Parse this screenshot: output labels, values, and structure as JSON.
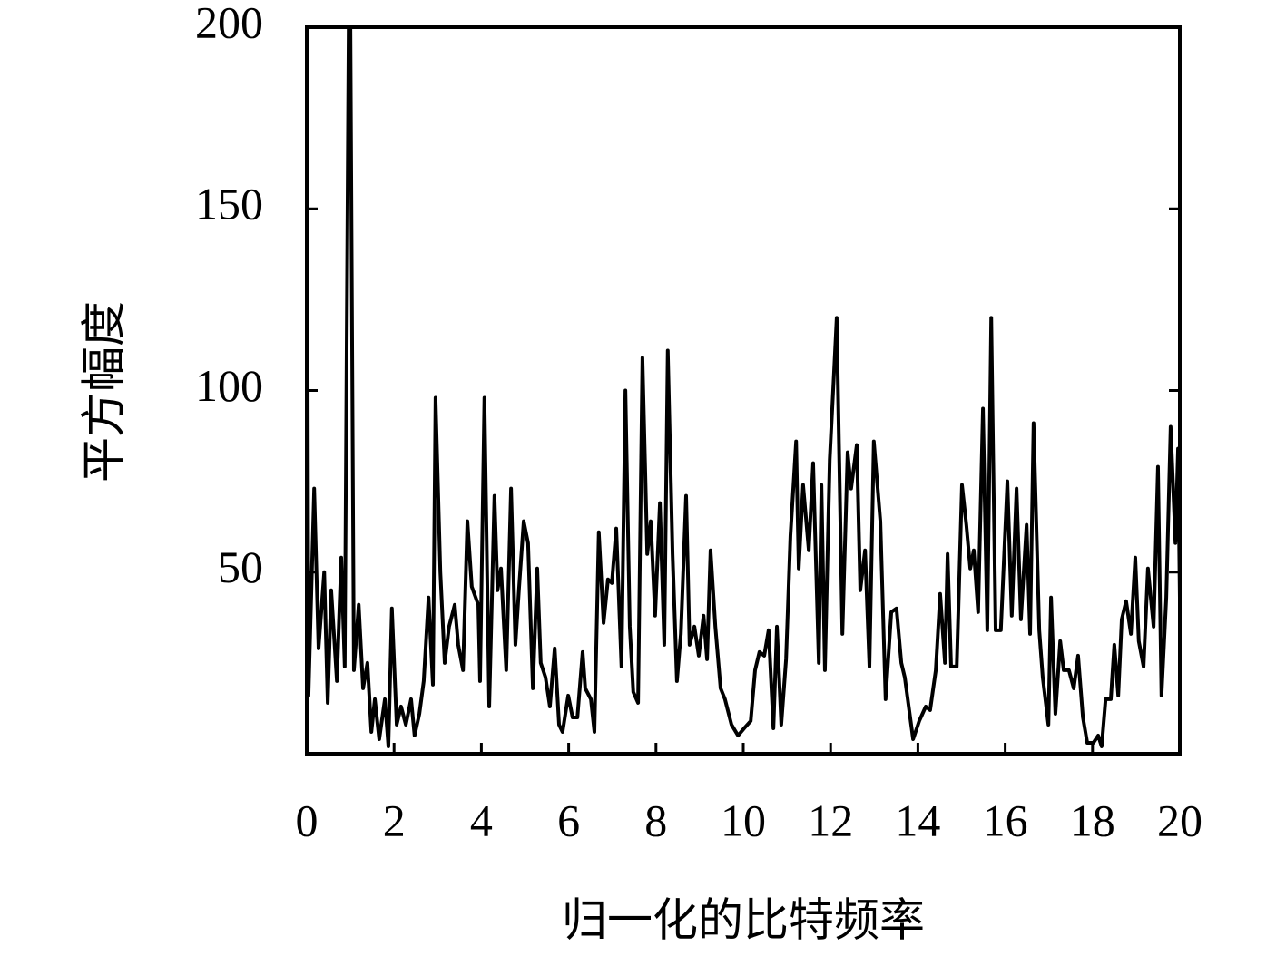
{
  "chart_data": {
    "type": "line",
    "x_label": "归一化的比特频率",
    "y_label": "平方幅度",
    "color": "#000000",
    "xlim": [
      0,
      20
    ],
    "ylim": [
      0,
      200
    ],
    "xticks": [
      0,
      2,
      4,
      6,
      8,
      10,
      12,
      14,
      16,
      18,
      20
    ],
    "yticks": [
      50,
      100,
      150,
      200
    ],
    "x": [
      0,
      0.04,
      0.17,
      0.27,
      0.4,
      0.48,
      0.56,
      0.69,
      0.79,
      0.87,
      0.96,
      1.0,
      1.08,
      1.19,
      1.29,
      1.39,
      1.48,
      1.56,
      1.66,
      1.79,
      1.87,
      1.95,
      2.06,
      2.16,
      2.27,
      2.39,
      2.47,
      2.58,
      2.68,
      2.79,
      2.89,
      2.95,
      3.06,
      3.16,
      3.26,
      3.39,
      3.47,
      3.58,
      3.68,
      3.78,
      3.93,
      3.97,
      4.07,
      4.18,
      4.3,
      4.37,
      4.45,
      4.57,
      4.68,
      4.78,
      4.86,
      4.97,
      5.07,
      5.18,
      5.28,
      5.36,
      5.47,
      5.57,
      5.68,
      5.78,
      5.86,
      5.99,
      6.09,
      6.2,
      6.32,
      6.38,
      6.51,
      6.59,
      6.69,
      6.8,
      6.9,
      6.99,
      7.09,
      7.21,
      7.3,
      7.4,
      7.48,
      7.59,
      7.69,
      7.8,
      7.88,
      7.98,
      8.09,
      8.19,
      8.27,
      8.38,
      8.48,
      8.57,
      8.69,
      8.77,
      8.88,
      8.98,
      9.09,
      9.17,
      9.25,
      9.36,
      9.48,
      9.58,
      9.73,
      9.88,
      10.02,
      10.17,
      10.27,
      10.37,
      10.48,
      10.58,
      10.69,
      10.77,
      10.87,
      10.98,
      11.08,
      11.21,
      11.27,
      11.37,
      11.5,
      11.6,
      11.73,
      11.79,
      11.87,
      11.98,
      12.14,
      12.27,
      12.39,
      12.47,
      12.6,
      12.68,
      12.79,
      12.89,
      12.99,
      13.14,
      13.26,
      13.39,
      13.51,
      13.62,
      13.7,
      13.89,
      14.03,
      14.18,
      14.28,
      14.41,
      14.51,
      14.62,
      14.68,
      14.76,
      14.89,
      15.01,
      15.11,
      15.2,
      15.28,
      15.38,
      15.49,
      15.59,
      15.68,
      15.78,
      15.9,
      16.05,
      16.15,
      16.26,
      16.36,
      16.49,
      16.57,
      16.65,
      16.78,
      16.86,
      16.99,
      17.05,
      17.15,
      17.26,
      17.34,
      17.46,
      17.57,
      17.67,
      17.78,
      17.88,
      18.02,
      18.13,
      18.21,
      18.3,
      18.42,
      18.5,
      18.59,
      18.67,
      18.77,
      18.88,
      18.98,
      19.06,
      19.17,
      19.27,
      19.4,
      19.5,
      19.58,
      19.69,
      19.79,
      19.9,
      19.96,
      20.0
    ],
    "values": [
      200,
      16,
      73,
      29,
      50,
      14,
      45,
      20,
      54,
      24,
      200,
      200,
      23,
      41,
      18,
      25,
      6,
      15,
      4,
      15,
      2,
      40,
      8,
      13,
      8,
      15,
      5,
      11,
      20,
      43,
      19,
      98,
      50,
      25,
      35,
      41,
      30,
      23,
      64,
      46,
      41,
      20,
      98,
      13,
      71,
      45,
      51,
      23,
      73,
      30,
      45,
      64,
      58,
      18,
      51,
      25,
      21,
      13,
      29,
      8,
      6,
      16,
      10,
      10,
      28,
      18,
      15,
      6,
      61,
      36,
      48,
      47,
      62,
      24,
      100,
      35,
      17,
      14,
      109,
      55,
      64,
      38,
      69,
      30,
      111,
      55,
      20,
      33,
      71,
      30,
      35,
      27,
      38,
      26,
      56,
      35,
      18,
      15,
      8,
      5,
      7,
      9,
      23,
      28,
      27,
      34,
      7,
      35,
      8,
      26,
      60,
      86,
      51,
      74,
      56,
      80,
      25,
      74,
      23,
      81,
      120,
      33,
      83,
      73,
      85,
      45,
      56,
      24,
      86,
      64,
      15,
      39,
      40,
      25,
      21,
      4,
      9,
      13,
      12,
      23,
      44,
      25,
      55,
      24,
      24,
      74,
      63,
      51,
      56,
      39,
      95,
      34,
      120,
      34,
      34,
      75,
      38,
      73,
      37,
      63,
      33,
      91,
      34,
      21,
      8,
      43,
      11,
      31,
      23,
      23,
      18,
      27,
      10,
      3,
      3,
      5,
      2,
      15,
      15,
      30,
      16,
      37,
      42,
      33,
      54,
      31,
      24,
      51,
      35,
      79,
      16,
      43,
      90,
      58,
      84,
      43
    ]
  }
}
